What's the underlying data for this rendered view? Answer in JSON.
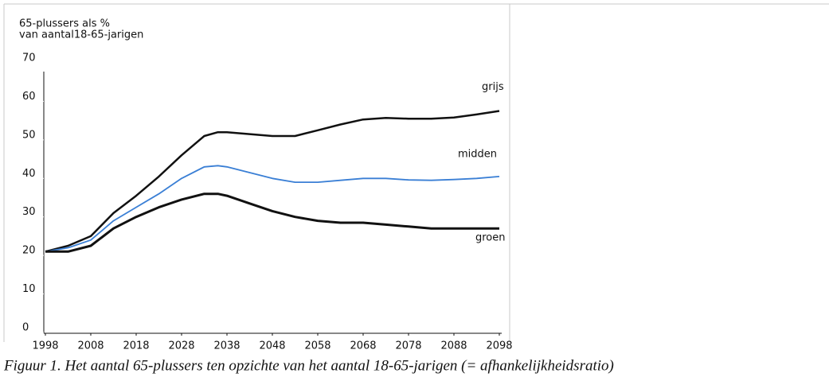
{
  "chart_data": {
    "type": "line",
    "y_label": [
      "65-plussers als %",
      "van aantal18-65-jarigen"
    ],
    "caption": "Figuur 1. Het aantal 65-plussers ten opzichte van het aantal 18-65-jarigen (= afhankelijkheidsratio)",
    "x": [
      1998,
      2003,
      2008,
      2013,
      2018,
      2023,
      2028,
      2033,
      2036,
      2038,
      2043,
      2048,
      2053,
      2058,
      2063,
      2068,
      2073,
      2078,
      2083,
      2088,
      2093,
      2098
    ],
    "xlim": [
      1998,
      2098
    ],
    "xticks": [
      1998,
      2008,
      2018,
      2028,
      2038,
      2048,
      2058,
      2068,
      2078,
      2088,
      2098
    ],
    "ylim": [
      0,
      70
    ],
    "yticks": [
      0,
      10,
      20,
      30,
      40,
      50,
      60,
      70
    ],
    "grid": false,
    "series": [
      {
        "name": "grijs",
        "color": "#111111",
        "values": [
          21,
          22.5,
          25,
          31,
          35.5,
          40.5,
          46,
          51,
          52,
          52,
          51.5,
          51,
          51,
          52.5,
          54,
          55.3,
          55.7,
          55.5,
          55.5,
          55.8,
          56.6,
          57.5
        ]
      },
      {
        "name": "midden",
        "color": "#3a7fd5",
        "values": [
          21,
          22,
          24,
          29,
          32.5,
          36,
          40,
          43,
          43.3,
          43,
          41.5,
          40,
          39,
          39,
          39.5,
          40,
          40,
          39.6,
          39.5,
          39.7,
          40,
          40.5
        ]
      },
      {
        "name": "groen",
        "color": "#111111",
        "values": [
          21,
          21,
          22.5,
          27,
          30,
          32.5,
          34.5,
          36,
          36,
          35.5,
          33.5,
          31.5,
          30,
          29,
          28.5,
          28.5,
          28,
          27.5,
          27,
          27,
          27,
          27
        ]
      }
    ]
  }
}
